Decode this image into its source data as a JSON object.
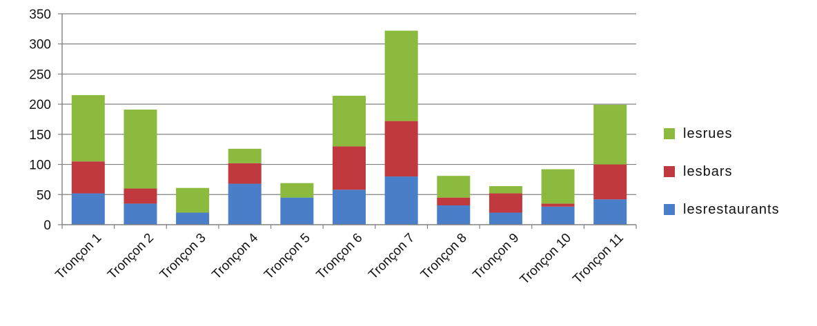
{
  "chart_data": {
    "type": "bar",
    "stacked": true,
    "title": "",
    "xlabel": "",
    "ylabel": "",
    "ylim": [
      0,
      350
    ],
    "yticks": [
      0,
      50,
      100,
      150,
      200,
      250,
      300,
      350
    ],
    "grid": "horizontal",
    "legend_position": "right",
    "categories": [
      "Tronçon 1",
      "Tronçon 2",
      "Tronçon 3",
      "Tronçon 4",
      "Tronçon 5",
      "Tronçon 6",
      "Tronçon 7",
      "Tronçon 8",
      "Tronçon 9",
      "Tronçon 10",
      "Tronçon 11"
    ],
    "series": [
      {
        "name": "lesrestaurants",
        "color": "#4a7ec9",
        "values": [
          52,
          35,
          20,
          68,
          45,
          58,
          80,
          32,
          20,
          30,
          42
        ]
      },
      {
        "name": "lesbars",
        "color": "#c0393f",
        "values": [
          53,
          25,
          0,
          34,
          0,
          72,
          92,
          13,
          32,
          5,
          58
        ]
      },
      {
        "name": "lesrues",
        "color": "#8cba3f",
        "values": [
          110,
          131,
          41,
          24,
          24,
          84,
          150,
          36,
          12,
          57,
          99
        ]
      }
    ],
    "legend_order": [
      "lesrues",
      "lesbars",
      "lesrestaurants"
    ]
  }
}
